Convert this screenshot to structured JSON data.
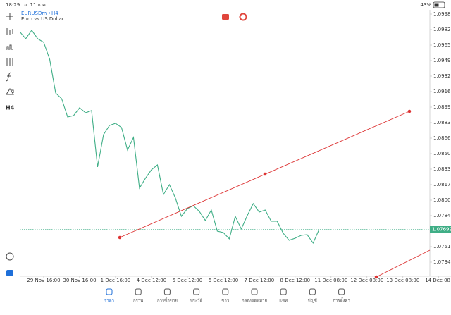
{
  "status_bar": {
    "time": "18:29",
    "date": "จ. 11 ธ.ค.",
    "battery": "43%"
  },
  "symbol": {
    "name": "EURUSDm",
    "timeframe": "H4",
    "description": "Euro vs US Dollar"
  },
  "chart_data": {
    "type": "line",
    "color": "#3fae86",
    "values": [
      1.09798,
      1.09723,
      1.09813,
      1.09723,
      1.09685,
      1.09505,
      1.09145,
      1.09085,
      1.0889,
      1.08905,
      1.08988,
      1.08935,
      1.08958,
      1.08358,
      1.08703,
      1.088,
      1.08823,
      1.08778,
      1.08538,
      1.08673,
      1.08133,
      1.08238,
      1.08328,
      1.0838,
      1.08065,
      1.0817,
      1.08028,
      1.07833,
      1.07915,
      1.07945,
      1.07885,
      1.07788,
      1.079,
      1.07675,
      1.0766,
      1.07593,
      1.07833,
      1.07698,
      1.0784,
      1.07968,
      1.07878,
      1.079,
      1.0778,
      1.0778,
      1.07653,
      1.07578,
      1.076,
      1.0763,
      1.07638,
      1.07548,
      1.07692
    ],
    "last_price": 1.07692,
    "xlim": [
      0,
      68.5
    ],
    "xticks": [
      {
        "value": 4,
        "label": "29 Nov 16:00"
      },
      {
        "value": 10,
        "label": "30 Nov 16:00"
      },
      {
        "value": 16,
        "label": "1 Dec 16:00"
      },
      {
        "value": 22,
        "label": "4 Dec 12:00"
      },
      {
        "value": 28,
        "label": "5 Dec 12:00"
      },
      {
        "value": 34,
        "label": "6 Dec 12:00"
      },
      {
        "value": 40,
        "label": "7 Dec 12:00"
      },
      {
        "value": 46,
        "label": "8 Dec 12:00"
      },
      {
        "value": 52,
        "label": "11 Dec 08:00"
      },
      {
        "value": 58,
        "label": "12 Dec 08:00"
      },
      {
        "value": 64,
        "label": "13 Dec 08:00"
      },
      {
        "value": 70,
        "label": "14 Dec 08"
      }
    ],
    "ylim": [
      1.07195,
      1.1003
    ],
    "yticks": [
      1.09985,
      {
        "value": 1.0982,
        "label": "1.09820"
      },
      1.09655,
      {
        "value": 1.0949,
        "label": "1.09490"
      },
      1.09325,
      {
        "value": 1.0916,
        "label": "1.09160"
      },
      1.08995,
      {
        "value": 1.0883,
        "label": "1.08830"
      },
      1.08665,
      {
        "value": 1.085,
        "label": "1.08500"
      },
      1.08335,
      {
        "value": 1.0817,
        "label": "1.08170"
      },
      1.08005,
      {
        "value": 1.0784,
        "label": "1.07840"
      },
      {
        "value": 1.0751,
        "label": "1.07510"
      },
      1.07345
    ]
  },
  "nav": [
    "ราคา",
    "กราฟ",
    "การซื้อขาย",
    "ประวัติ",
    "ข่าว",
    "กล่องจดหมาย",
    "แชท",
    "บัญชี",
    "การตั้งค่า"
  ]
}
